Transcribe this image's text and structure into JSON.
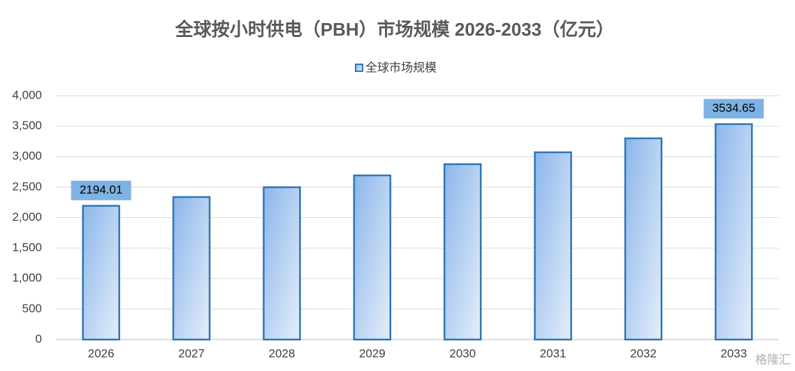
{
  "chart_data": {
    "type": "bar",
    "title": "全球按小时供电（PBH）市场规模 2026-2033（亿元）",
    "categories": [
      "2026",
      "2027",
      "2028",
      "2029",
      "2030",
      "2031",
      "2032",
      "2033"
    ],
    "series": [
      {
        "name": "全球市场规模",
        "color": "#2e75b6",
        "values": [
          2194.01,
          2338,
          2499,
          2693,
          2877,
          3072,
          3301,
          3534.65
        ],
        "value_labels": [
          "2194.01",
          null,
          null,
          null,
          null,
          null,
          null,
          "3534.65"
        ]
      }
    ],
    "ylim": [
      0,
      4000
    ],
    "yticks": [
      0,
      500,
      {
        "value": 1000,
        "label": "1,000"
      },
      {
        "value": 1500,
        "label": "1,500"
      },
      {
        "value": 2000,
        "label": "2,000"
      },
      {
        "value": 2500,
        "label": "2,500"
      },
      {
        "value": 3000,
        "label": "3,000"
      },
      {
        "value": 3500,
        "label": "3,500"
      },
      {
        "value": 4000,
        "label": "4,000"
      }
    ],
    "grid": true,
    "legend": "top",
    "watermark": "格隆汇"
  }
}
